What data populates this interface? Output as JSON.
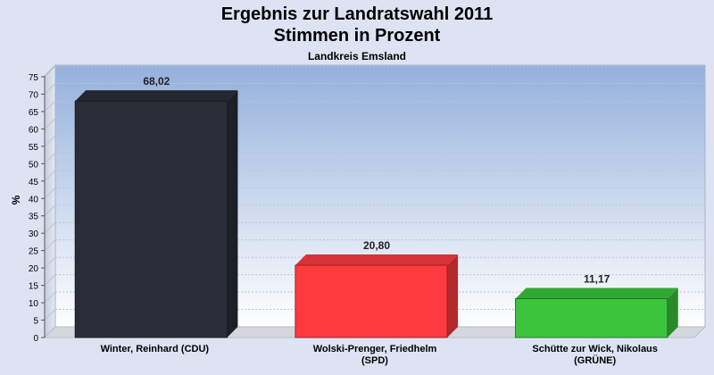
{
  "chart_data": {
    "type": "bar",
    "title": "Ergebnis zur Landratswahl 2011",
    "subtitle": "Stimmen in Prozent",
    "region": "Landkreis Emsland",
    "ylabel": "%",
    "ylim": [
      0,
      75
    ],
    "ytick_step": 5,
    "grid": true,
    "categories": [
      [
        "Winter, Reinhard (CDU)"
      ],
      [
        "Wolski-Prenger, Friedhelm",
        "(SPD)"
      ],
      [
        "Schütte zur Wick, Nikolaus",
        "(GRÜNE)"
      ]
    ],
    "values": [
      68.02,
      20.8,
      11.17
    ],
    "value_labels": [
      "68,02",
      "20,80",
      "11,17"
    ],
    "colors": [
      "#2a2d38",
      "#ff3a3e",
      "#3cc53c"
    ]
  }
}
